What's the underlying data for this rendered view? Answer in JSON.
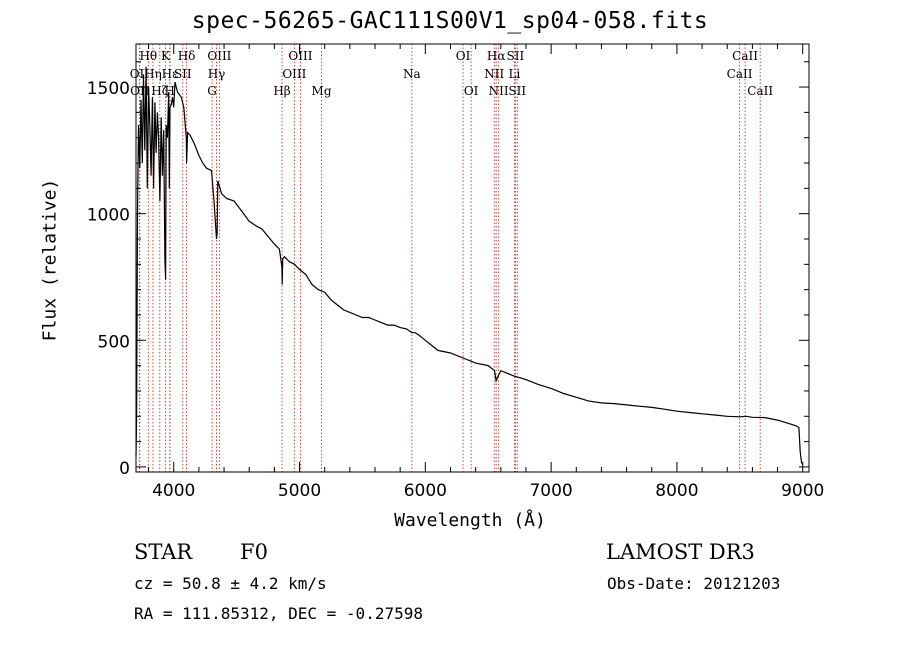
{
  "chart_data": {
    "type": "line",
    "title": "spec-56265-GAC111S00V1_sp04-058.fits",
    "xlabel": "Wavelength (Å)",
    "ylabel": "Flux (relative)",
    "xlim": [
      3700,
      9050
    ],
    "ylim": [
      -20,
      1670
    ],
    "xticks": [
      4000,
      5000,
      6000,
      7000,
      8000,
      9000
    ],
    "yticks": [
      0,
      500,
      1000,
      1500
    ],
    "series": [
      {
        "name": "spectrum",
        "x": [
          3700,
          3705,
          3712,
          3720,
          3730,
          3740,
          3750,
          3760,
          3770,
          3780,
          3790,
          3800,
          3810,
          3820,
          3830,
          3840,
          3850,
          3860,
          3870,
          3880,
          3890,
          3900,
          3910,
          3920,
          3930,
          3935,
          3940,
          3950,
          3960,
          3965,
          3970,
          3980,
          3990,
          4000,
          4010,
          4030,
          4060,
          4080,
          4100,
          4102,
          4110,
          4130,
          4160,
          4200,
          4230,
          4260,
          4300,
          4320,
          4340,
          4345,
          4350,
          4380,
          4420,
          4480,
          4540,
          4600,
          4660,
          4700,
          4750,
          4800,
          4840,
          4860,
          4862,
          4866,
          4880,
          4920,
          4960,
          5000,
          5050,
          5100,
          5150,
          5200,
          5250,
          5300,
          5350,
          5400,
          5450,
          5500,
          5550,
          5600,
          5650,
          5700,
          5750,
          5800,
          5850,
          5893,
          5920,
          5950,
          6000,
          6050,
          6100,
          6200,
          6300,
          6400,
          6500,
          6550,
          6563,
          6580,
          6600,
          6650,
          6700,
          6800,
          6900,
          7000,
          7100,
          7200,
          7300,
          7400,
          7500,
          7600,
          7700,
          7800,
          7900,
          8000,
          8100,
          8200,
          8300,
          8400,
          8500,
          8550,
          8600,
          8700,
          8800,
          8900,
          8950,
          8970,
          8980,
          8985,
          8990,
          9000
        ],
        "values": [
          40,
          200,
          1000,
          1350,
          1180,
          1450,
          1200,
          1550,
          1250,
          1580,
          1100,
          1500,
          1350,
          1150,
          1460,
          1100,
          1440,
          1240,
          1400,
          1300,
          1050,
          1380,
          1150,
          1330,
          820,
          740,
          1350,
          1300,
          1480,
          1100,
          1420,
          1430,
          1460,
          1420,
          1520,
          1480,
          1460,
          1420,
          1300,
          1200,
          1320,
          1310,
          1280,
          1230,
          1200,
          1180,
          1170,
          1050,
          900,
          920,
          1130,
          1080,
          1060,
          1050,
          1010,
          970,
          950,
          940,
          910,
          880,
          860,
          790,
          720,
          820,
          830,
          810,
          800,
          780,
          760,
          720,
          700,
          690,
          660,
          640,
          620,
          610,
          600,
          590,
          590,
          580,
          570,
          560,
          560,
          550,
          545,
          530,
          530,
          520,
          500,
          480,
          460,
          450,
          430,
          410,
          400,
          380,
          340,
          360,
          380,
          370,
          360,
          345,
          325,
          310,
          290,
          275,
          260,
          253,
          250,
          245,
          240,
          235,
          228,
          220,
          215,
          210,
          205,
          200,
          198,
          200,
          196,
          195,
          185,
          170,
          162,
          155,
          60,
          40,
          20,
          10
        ]
      }
    ],
    "lines": [
      {
        "name": "Hθ",
        "wave": 3798,
        "row": 0
      },
      {
        "name": "OII",
        "wave": 3727,
        "row": 1
      },
      {
        "name": "Hη",
        "wave": 3835,
        "row": 1
      },
      {
        "name": "K",
        "wave": 3934,
        "row": 0
      },
      {
        "name": "Hζ",
        "wave": 3889,
        "row": 2
      },
      {
        "name": "H",
        "wave": 3968,
        "row": 2
      },
      {
        "name": "Hε",
        "wave": 3970,
        "row": 1
      },
      {
        "name": "OII",
        "wave": 3730,
        "row": 2
      },
      {
        "name": "Hδ",
        "wave": 4102,
        "row": 0
      },
      {
        "name": "SII",
        "wave": 4072,
        "row": 1
      },
      {
        "name": "OIII",
        "wave": 4363,
        "row": 0
      },
      {
        "name": "Hγ",
        "wave": 4340,
        "row": 1
      },
      {
        "name": "G",
        "wave": 4305,
        "row": 2
      },
      {
        "name": "Hβ",
        "wave": 4861,
        "row": 2
      },
      {
        "name": "OIII",
        "wave": 5007,
        "row": 0
      },
      {
        "name": "OIII",
        "wave": 4959,
        "row": 1
      },
      {
        "name": "Mg",
        "wave": 5175,
        "row": 2
      },
      {
        "name": "Na",
        "wave": 5893,
        "row": 1
      },
      {
        "name": "OI",
        "wave": 6300,
        "row": 0
      },
      {
        "name": "OI",
        "wave": 6364,
        "row": 2
      },
      {
        "name": "Hα",
        "wave": 6563,
        "row": 0
      },
      {
        "name": "NII",
        "wave": 6548,
        "row": 1
      },
      {
        "name": "NII",
        "wave": 6583,
        "row": 2
      },
      {
        "name": "SII",
        "wave": 6716,
        "row": 0
      },
      {
        "name": "Li",
        "wave": 6708,
        "row": 1
      },
      {
        "name": "SII",
        "wave": 6731,
        "row": 2
      },
      {
        "name": "CaII",
        "wave": 8542,
        "row": 0
      },
      {
        "name": "CaII",
        "wave": 8498,
        "row": 1
      },
      {
        "name": "CaII",
        "wave": 8662,
        "row": 2
      }
    ]
  },
  "info": {
    "class_text": "STAR",
    "subclass_text": "F0",
    "survey_text": "LAMOST DR3",
    "cz_text": "cz = 50.8 ± 4.2 km/s",
    "obs_date_text": "Obs-Date: 20121203",
    "coords_text": "RA = 111.85312, DEC =  -0.27598"
  },
  "colors": {
    "line_marker": "#c0392b",
    "spectrum": "#000000",
    "axes": "#000000"
  }
}
